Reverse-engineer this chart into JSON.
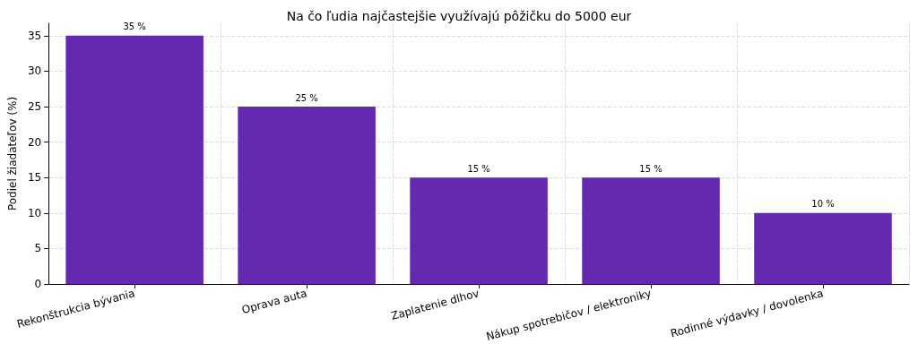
{
  "chart_data": {
    "type": "bar",
    "title": "Na čo ľudia najčastejšie využívajú pôžičku do 5000 eur",
    "ylabel": "Podiel žiadateľov (%)",
    "categories": [
      "Rekonštrukcia bývania",
      "Oprava auta",
      "Zaplatenie dlhov",
      "Nákup spotrebičov / elektroniky",
      "Rodinné výdavky / dovolenka"
    ],
    "values": [
      35,
      25,
      15,
      15,
      10
    ],
    "value_labels": [
      "35 %",
      "25 %",
      "15 %",
      "15 %",
      "10 %"
    ],
    "color": "#6429b0",
    "ylim": [
      0,
      36.75
    ],
    "yticks": [
      0,
      5,
      10,
      15,
      20,
      25,
      30,
      35
    ],
    "grid": true
  }
}
